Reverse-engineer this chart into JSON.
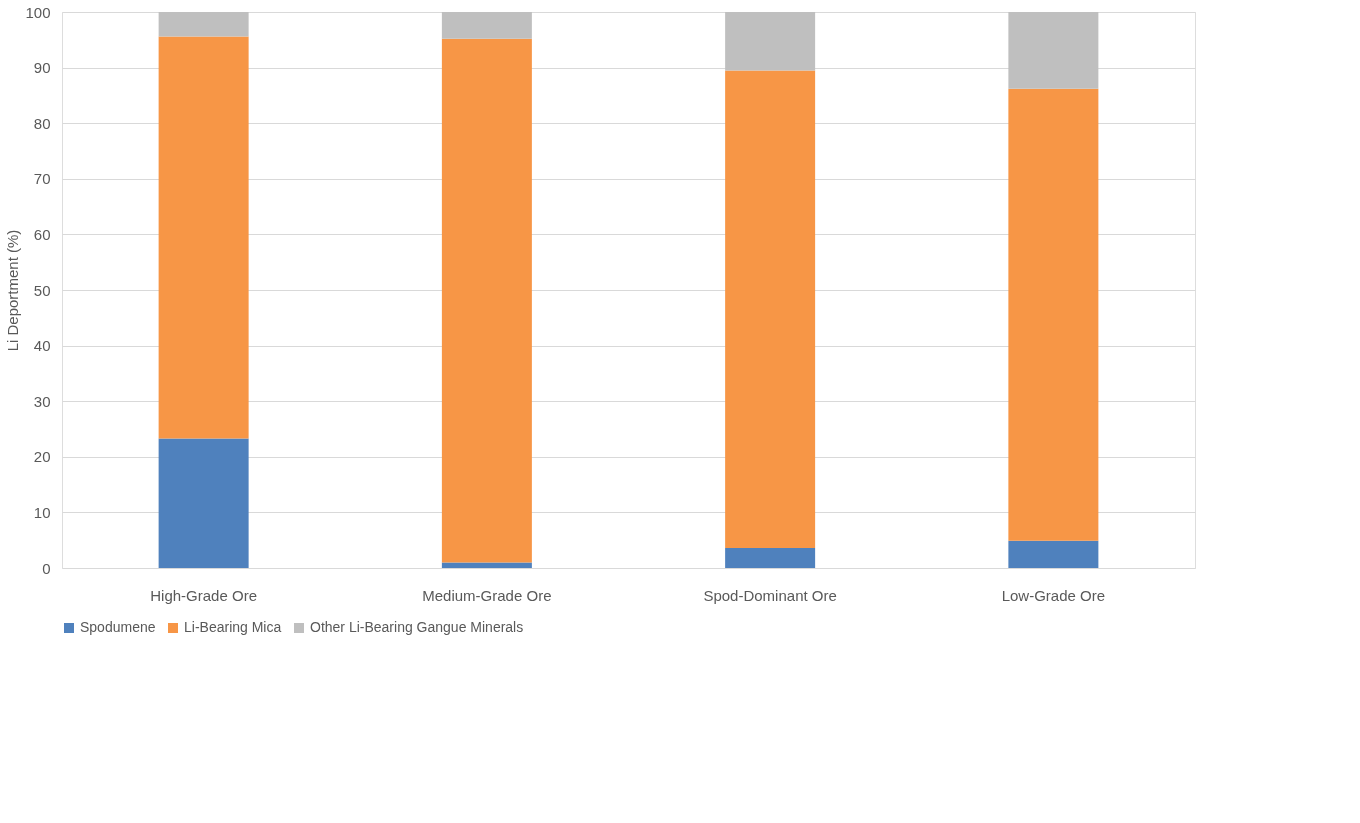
{
  "chart_data": {
    "type": "bar",
    "stacked": true,
    "ylabel": "Li Deportment (%)",
    "categories": [
      "High-Grade Ore",
      "Medium-Grade Ore",
      "Spod-Dominant Ore",
      "Low-Grade Ore"
    ],
    "series": [
      {
        "name": "Spodumene",
        "color": "#4f81bd",
        "values": [
          23.3,
          1.0,
          3.6,
          4.9
        ]
      },
      {
        "name": "Li-Bearing Mica",
        "color": "#f79646",
        "values": [
          72.3,
          94.2,
          85.9,
          81.3
        ]
      },
      {
        "name": "Other Li-Bearing Gangue Minerals",
        "color": "#bfbfbf",
        "values": [
          4.4,
          4.8,
          10.5,
          13.8
        ]
      }
    ],
    "ylim": [
      0,
      100
    ],
    "yticks": [
      0,
      10,
      20,
      30,
      40,
      50,
      60,
      70,
      80,
      90,
      100
    ],
    "grid": "y",
    "legend": "bottom"
  }
}
